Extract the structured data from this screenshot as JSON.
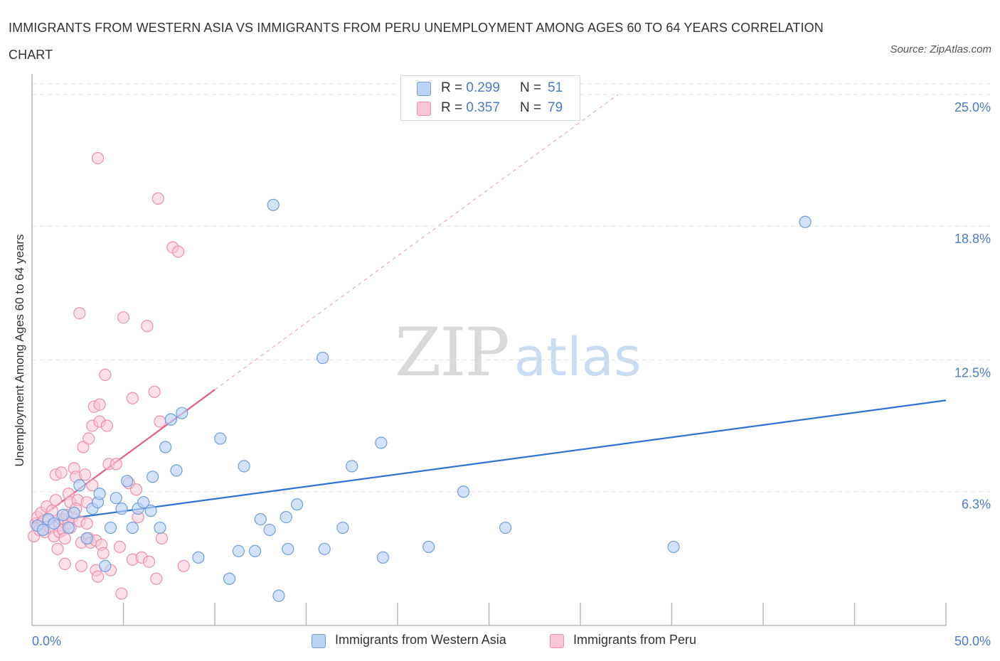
{
  "title": "IMMIGRANTS FROM WESTERN ASIA VS IMMIGRANTS FROM PERU UNEMPLOYMENT AMONG AGES 60 TO 64 YEARS CORRELATION CHART",
  "source": "Source: ZipAtlas.com",
  "watermark": {
    "zip": "ZIP",
    "atlas": "atlas"
  },
  "legend": {
    "rows": [
      {
        "r_label": "R = ",
        "r_value": "0.299",
        "n_label": "N = ",
        "n_value": "51"
      },
      {
        "r_label": "R = ",
        "r_value": "0.357",
        "n_label": "N = ",
        "n_value": "79"
      }
    ]
  },
  "colors": {
    "blue_fill": "#bad3f6",
    "blue_stroke": "#6f9fd9",
    "blue_line": "#2f74d0",
    "pink_fill": "#f8c6d5",
    "pink_stroke": "#ec90ad",
    "pink_line": "#e0608a",
    "grid": "#e2e2e2",
    "tick_text": "#4a7cc4"
  },
  "chart_data": {
    "type": "scatter",
    "title": "IMMIGRANTS FROM WESTERN ASIA VS IMMIGRANTS FROM PERU UNEMPLOYMENT AMONG AGES 60 TO 64 YEARS CORRELATION CHART",
    "xlabel": "",
    "ylabel": "Unemployment Among Ages 60 to 64 years",
    "xlim": [
      0,
      50
    ],
    "ylim": [
      0,
      25.5
    ],
    "x_tick_labels": [
      "0.0%",
      "50.0%"
    ],
    "y_ticks": [
      6.3,
      12.5,
      18.8,
      25.0
    ],
    "y_tick_labels": [
      "6.3%",
      "12.5%",
      "18.8%",
      "25.0%"
    ],
    "grid": true,
    "legend_placement": "top-center",
    "series": [
      {
        "name": "Immigrants from Western Asia",
        "color": "#6f9fd9",
        "trend": {
          "x": [
            0,
            50
          ],
          "y": [
            4.8,
            10.6
          ]
        },
        "points": [
          [
            0.3,
            4.7
          ],
          [
            0.6,
            4.5
          ],
          [
            0.9,
            5.0
          ],
          [
            1.2,
            4.8
          ],
          [
            1.7,
            5.2
          ],
          [
            2.0,
            4.6
          ],
          [
            2.3,
            5.3
          ],
          [
            2.6,
            6.6
          ],
          [
            3.0,
            4.1
          ],
          [
            3.3,
            5.5
          ],
          [
            3.6,
            5.8
          ],
          [
            3.7,
            6.2
          ],
          [
            4.0,
            2.8
          ],
          [
            4.3,
            4.6
          ],
          [
            4.6,
            6.0
          ],
          [
            4.9,
            5.5
          ],
          [
            5.2,
            6.8
          ],
          [
            5.5,
            4.6
          ],
          [
            5.8,
            5.5
          ],
          [
            6.1,
            5.8
          ],
          [
            6.5,
            5.4
          ],
          [
            6.6,
            7.0
          ],
          [
            7.0,
            4.6
          ],
          [
            7.3,
            8.4
          ],
          [
            7.6,
            9.7
          ],
          [
            7.9,
            7.3
          ],
          [
            8.2,
            10.0
          ],
          [
            9.1,
            3.2
          ],
          [
            10.3,
            8.8
          ],
          [
            10.8,
            2.2
          ],
          [
            11.3,
            3.5
          ],
          [
            11.6,
            7.5
          ],
          [
            12.2,
            3.5
          ],
          [
            12.5,
            5.0
          ],
          [
            13.0,
            4.5
          ],
          [
            13.2,
            19.8
          ],
          [
            13.5,
            1.4
          ],
          [
            13.9,
            5.1
          ],
          [
            14.0,
            3.6
          ],
          [
            14.5,
            5.7
          ],
          [
            15.9,
            12.6
          ],
          [
            16.0,
            3.6
          ],
          [
            17.0,
            4.6
          ],
          [
            17.5,
            7.5
          ],
          [
            19.1,
            8.6
          ],
          [
            19.2,
            3.2
          ],
          [
            21.7,
            3.7
          ],
          [
            23.6,
            6.3
          ],
          [
            25.9,
            4.6
          ],
          [
            35.1,
            3.7
          ],
          [
            42.3,
            19.0
          ]
        ]
      },
      {
        "name": "Immigrants from Peru",
        "color": "#ec90ad",
        "trend": {
          "x": [
            0,
            10
          ],
          "y": [
            4.8,
            11.1
          ]
        },
        "points": [
          [
            0.1,
            4.2
          ],
          [
            0.2,
            4.8
          ],
          [
            0.3,
            5.1
          ],
          [
            0.4,
            4.5
          ],
          [
            0.5,
            5.3
          ],
          [
            0.6,
            4.9
          ],
          [
            0.7,
            4.4
          ],
          [
            0.8,
            5.6
          ],
          [
            0.9,
            5.0
          ],
          [
            1.0,
            4.6
          ],
          [
            1.1,
            5.4
          ],
          [
            1.2,
            4.2
          ],
          [
            1.3,
            5.9
          ],
          [
            1.4,
            3.6
          ],
          [
            1.5,
            4.7
          ],
          [
            1.6,
            5.0
          ],
          [
            1.3,
            7.1
          ],
          [
            1.5,
            4.4
          ],
          [
            1.6,
            7.2
          ],
          [
            1.7,
            4.5
          ],
          [
            1.8,
            4.1
          ],
          [
            1.8,
            5.0
          ],
          [
            1.9,
            5.2
          ],
          [
            2.0,
            4.8
          ],
          [
            2.1,
            4.6
          ],
          [
            2.0,
            6.2
          ],
          [
            2.1,
            5.8
          ],
          [
            1.8,
            2.9
          ],
          [
            2.2,
            5.1
          ],
          [
            2.3,
            7.4
          ],
          [
            2.4,
            7.0
          ],
          [
            2.5,
            5.9
          ],
          [
            2.4,
            5.5
          ],
          [
            2.6,
            4.9
          ],
          [
            2.6,
            14.7
          ],
          [
            2.7,
            3.9
          ],
          [
            2.8,
            8.4
          ],
          [
            2.7,
            2.8
          ],
          [
            2.9,
            7.1
          ],
          [
            3.0,
            5.8
          ],
          [
            3.0,
            4.8
          ],
          [
            3.1,
            8.8
          ],
          [
            3.1,
            4.1
          ],
          [
            3.2,
            3.9
          ],
          [
            3.3,
            9.4
          ],
          [
            3.3,
            6.6
          ],
          [
            3.4,
            10.3
          ],
          [
            3.5,
            2.6
          ],
          [
            3.5,
            4.0
          ],
          [
            3.6,
            2.3
          ],
          [
            3.6,
            22.0
          ],
          [
            3.7,
            9.6
          ],
          [
            3.8,
            3.8
          ],
          [
            3.7,
            10.4
          ],
          [
            3.9,
            3.4
          ],
          [
            4.0,
            11.8
          ],
          [
            4.1,
            9.4
          ],
          [
            4.2,
            7.6
          ],
          [
            4.3,
            2.6
          ],
          [
            4.6,
            7.6
          ],
          [
            4.8,
            3.7
          ],
          [
            4.9,
            1.5
          ],
          [
            5.0,
            14.5
          ],
          [
            5.3,
            6.7
          ],
          [
            5.5,
            3.1
          ],
          [
            5.5,
            10.7
          ],
          [
            5.7,
            6.4
          ],
          [
            5.8,
            5.1
          ],
          [
            6.0,
            3.2
          ],
          [
            6.3,
            14.1
          ],
          [
            6.4,
            3.0
          ],
          [
            6.7,
            11.0
          ],
          [
            6.9,
            20.1
          ],
          [
            6.8,
            2.2
          ],
          [
            7.0,
            9.6
          ],
          [
            7.1,
            4.1
          ],
          [
            7.7,
            17.8
          ],
          [
            8.0,
            17.6
          ],
          [
            8.3,
            2.8
          ]
        ]
      }
    ]
  }
}
